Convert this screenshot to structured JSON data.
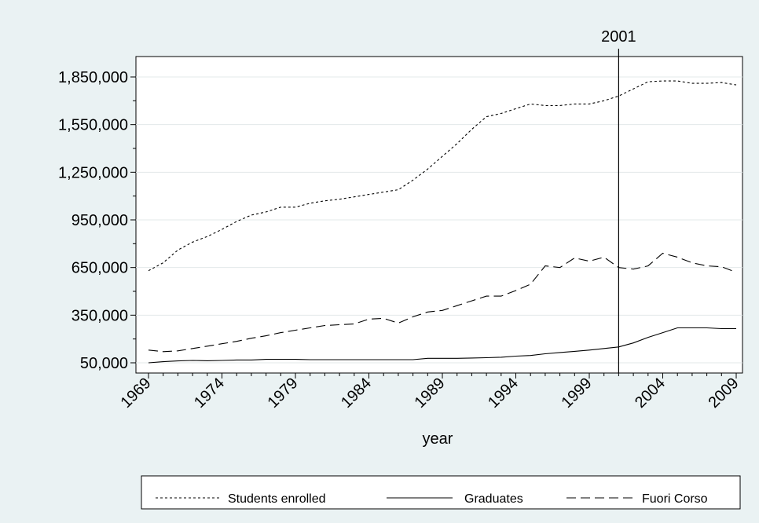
{
  "chart_data": {
    "type": "line",
    "xlabel": "year",
    "ylabel": "",
    "title": "",
    "xlim": [
      1969,
      2009
    ],
    "ylim": [
      50000,
      1850000
    ],
    "x_ticks": [
      1969,
      1974,
      1979,
      1984,
      1989,
      1994,
      1999,
      2004,
      2009
    ],
    "x_tick_labels": [
      "1969",
      "1974",
      "1979",
      "1984",
      "1989",
      "1994",
      "1999",
      "2004",
      "2009"
    ],
    "y_ticks": [
      50000,
      350000,
      650000,
      950000,
      1250000,
      1550000,
      1850000
    ],
    "y_tick_labels": [
      "50,000",
      "350,000",
      "650,000",
      "950,000",
      "1,250,000",
      "1,550,000",
      "1,850,000"
    ],
    "grid": "horizontal",
    "legend_position": "bottom",
    "annotation": {
      "x": 2001,
      "label": "2001"
    },
    "x": [
      1969,
      1970,
      1971,
      1972,
      1973,
      1974,
      1975,
      1976,
      1977,
      1978,
      1979,
      1980,
      1981,
      1982,
      1983,
      1984,
      1985,
      1986,
      1987,
      1988,
      1989,
      1990,
      1991,
      1992,
      1993,
      1994,
      1995,
      1996,
      1997,
      1998,
      1999,
      2000,
      2001,
      2002,
      2003,
      2004,
      2005,
      2006,
      2007,
      2008,
      2009
    ],
    "series": [
      {
        "name": "Students enrolled",
        "dash": "dotted",
        "values": [
          630000,
          680000,
          760000,
          810000,
          845000,
          890000,
          940000,
          980000,
          1000000,
          1030000,
          1030000,
          1055000,
          1070000,
          1080000,
          1095000,
          1110000,
          1125000,
          1140000,
          1200000,
          1270000,
          1350000,
          1430000,
          1520000,
          1600000,
          1620000,
          1650000,
          1680000,
          1670000,
          1670000,
          1680000,
          1680000,
          1700000,
          1730000,
          1775000,
          1820000,
          1825000,
          1825000,
          1810000,
          1810000,
          1815000,
          1800000
        ]
      },
      {
        "name": "Graduates",
        "dash": "solid",
        "values": [
          50000,
          57000,
          62000,
          65000,
          63000,
          65000,
          68000,
          68000,
          72000,
          72000,
          72000,
          70000,
          70000,
          70000,
          70000,
          70000,
          70000,
          70000,
          70000,
          78000,
          78000,
          78000,
          80000,
          82000,
          85000,
          92000,
          96000,
          107000,
          115000,
          122000,
          130000,
          140000,
          150000,
          175000,
          210000,
          240000,
          270000,
          270000,
          270000,
          265000,
          265000
        ]
      },
      {
        "name": "Fuori Corso",
        "dash": "dashed",
        "values": [
          130000,
          120000,
          125000,
          140000,
          155000,
          170000,
          185000,
          205000,
          220000,
          240000,
          255000,
          270000,
          285000,
          290000,
          295000,
          325000,
          330000,
          300000,
          340000,
          370000,
          380000,
          410000,
          440000,
          470000,
          470000,
          505000,
          545000,
          660000,
          650000,
          710000,
          690000,
          715000,
          650000,
          640000,
          660000,
          740000,
          715000,
          680000,
          660000,
          655000,
          620000
        ]
      }
    ]
  }
}
